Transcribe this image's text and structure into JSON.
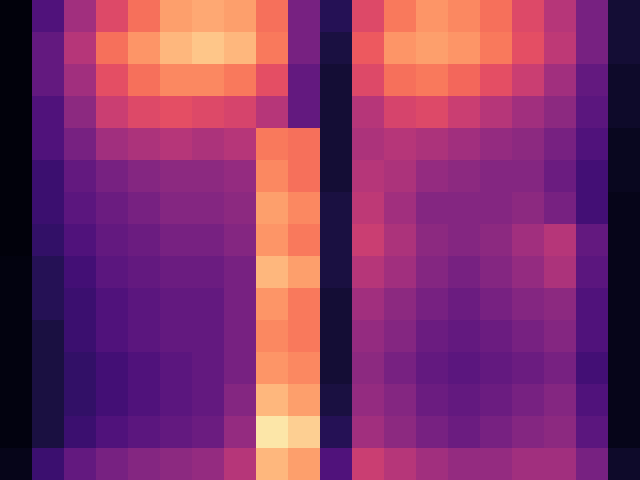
{
  "chart_data": {
    "type": "heatmap",
    "color": "magma",
    "tick_labels": false,
    "clim": [
      0,
      1
    ],
    "cells": [
      [
        0.02,
        0.25,
        0.45,
        0.6,
        0.7,
        0.8,
        0.82,
        0.8,
        0.7,
        0.35,
        0.15,
        0.6,
        0.72,
        0.78,
        0.75,
        0.7,
        0.6,
        0.5,
        0.35,
        0.1
      ],
      [
        0.02,
        0.3,
        0.5,
        0.7,
        0.78,
        0.85,
        0.88,
        0.85,
        0.72,
        0.35,
        0.12,
        0.65,
        0.78,
        0.8,
        0.78,
        0.72,
        0.62,
        0.52,
        0.35,
        0.1
      ],
      [
        0.02,
        0.3,
        0.45,
        0.62,
        0.7,
        0.75,
        0.75,
        0.72,
        0.62,
        0.3,
        0.1,
        0.6,
        0.7,
        0.72,
        0.68,
        0.62,
        0.55,
        0.45,
        0.3,
        0.08
      ],
      [
        0.02,
        0.25,
        0.4,
        0.55,
        0.6,
        0.62,
        0.6,
        0.58,
        0.5,
        0.3,
        0.1,
        0.5,
        0.58,
        0.6,
        0.55,
        0.5,
        0.45,
        0.4,
        0.28,
        0.08
      ],
      [
        0.02,
        0.25,
        0.35,
        0.45,
        0.48,
        0.5,
        0.48,
        0.5,
        0.72,
        0.7,
        0.1,
        0.48,
        0.5,
        0.48,
        0.45,
        0.42,
        0.4,
        0.35,
        0.25,
        0.06
      ],
      [
        0.02,
        0.2,
        0.3,
        0.35,
        0.38,
        0.4,
        0.4,
        0.42,
        0.75,
        0.7,
        0.1,
        0.5,
        0.48,
        0.42,
        0.4,
        0.38,
        0.38,
        0.32,
        0.22,
        0.06
      ],
      [
        0.02,
        0.2,
        0.28,
        0.32,
        0.35,
        0.38,
        0.38,
        0.4,
        0.8,
        0.75,
        0.12,
        0.52,
        0.45,
        0.38,
        0.38,
        0.38,
        0.4,
        0.35,
        0.22,
        0.05
      ],
      [
        0.02,
        0.18,
        0.25,
        0.3,
        0.32,
        0.35,
        0.35,
        0.38,
        0.78,
        0.72,
        0.12,
        0.55,
        0.48,
        0.4,
        0.38,
        0.4,
        0.45,
        0.5,
        0.3,
        0.05
      ],
      [
        0.03,
        0.15,
        0.22,
        0.28,
        0.3,
        0.32,
        0.32,
        0.35,
        0.85,
        0.8,
        0.12,
        0.5,
        0.45,
        0.38,
        0.35,
        0.38,
        0.42,
        0.48,
        0.28,
        0.05
      ],
      [
        0.03,
        0.15,
        0.2,
        0.25,
        0.28,
        0.3,
        0.3,
        0.35,
        0.78,
        0.72,
        0.1,
        0.45,
        0.4,
        0.35,
        0.32,
        0.35,
        0.38,
        0.4,
        0.25,
        0.05
      ],
      [
        0.03,
        0.12,
        0.2,
        0.25,
        0.28,
        0.3,
        0.3,
        0.35,
        0.75,
        0.72,
        0.1,
        0.42,
        0.38,
        0.32,
        0.3,
        0.32,
        0.35,
        0.38,
        0.25,
        0.05
      ],
      [
        0.03,
        0.12,
        0.18,
        0.22,
        0.25,
        0.28,
        0.3,
        0.35,
        0.78,
        0.75,
        0.1,
        0.4,
        0.35,
        0.3,
        0.28,
        0.3,
        0.32,
        0.35,
        0.22,
        0.05
      ],
      [
        0.03,
        0.12,
        0.18,
        0.22,
        0.25,
        0.28,
        0.3,
        0.38,
        0.85,
        0.8,
        0.12,
        0.42,
        0.38,
        0.32,
        0.3,
        0.32,
        0.35,
        0.38,
        0.25,
        0.05
      ],
      [
        0.03,
        0.12,
        0.2,
        0.25,
        0.28,
        0.3,
        0.32,
        0.42,
        0.95,
        0.9,
        0.15,
        0.45,
        0.4,
        0.35,
        0.32,
        0.35,
        0.38,
        0.4,
        0.28,
        0.05
      ],
      [
        0.05,
        0.2,
        0.3,
        0.35,
        0.38,
        0.4,
        0.42,
        0.5,
        0.85,
        0.8,
        0.25,
        0.55,
        0.5,
        0.45,
        0.42,
        0.42,
        0.45,
        0.45,
        0.35,
        0.08
      ]
    ]
  }
}
